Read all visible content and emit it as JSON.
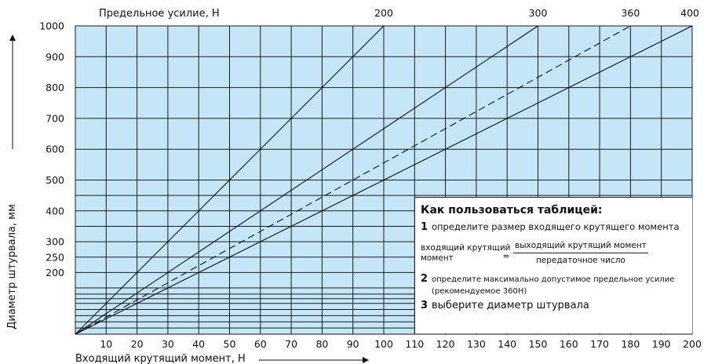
{
  "chart_data": {
    "type": "line",
    "xlabel": "Входящий крутящий момент, Н",
    "ylabel": "Диаметр штурвала, мм",
    "top_label": "Предельное усилие, Н",
    "x_ticks": [
      "10",
      "20",
      "30",
      "40",
      "50",
      "60",
      "70",
      "80",
      "90",
      "100",
      "110",
      "120",
      "130",
      "140",
      "150",
      "160",
      "170",
      "180",
      "190",
      "200"
    ],
    "y_ticks": [
      "200",
      "250",
      "300",
      "400",
      "500",
      "600",
      "700",
      "800",
      "900",
      "1000"
    ],
    "x_range": [
      0,
      200
    ],
    "y_range": [
      0,
      1000
    ],
    "grid": true,
    "series": [
      {
        "label": "200",
        "style": "solid",
        "x": [
          0,
          100
        ],
        "y": [
          0,
          1000
        ]
      },
      {
        "label": "300",
        "style": "solid",
        "x": [
          0,
          150
        ],
        "y": [
          0,
          1000
        ]
      },
      {
        "label": "360",
        "style": "dashed",
        "x": [
          0,
          180
        ],
        "y": [
          0,
          1000
        ]
      },
      {
        "label": "400",
        "style": "solid",
        "x": [
          0,
          200
        ],
        "y": [
          0,
          1000
        ]
      }
    ]
  },
  "instructions": {
    "title": "Как пользоваться таблицей:",
    "step1_num": "1",
    "step1": "определите размер входящего крутящего момента",
    "formula_lhs_line1": "входящий крутящий",
    "formula_lhs_line2": "момент",
    "formula_eq": "=",
    "formula_num": "выходящий крутящий момент",
    "formula_den": "передаточное число",
    "step2_num": "2",
    "step2_line1": "определите максимально допустимое предельное усилие",
    "step2_line2": "(рекомендуемое 360Н)",
    "step3_num": "3",
    "step3": "выберите диаметр штурвала"
  },
  "colors": {
    "plot_background": "#c4e6f7",
    "grid": "#1a1a1a",
    "lines": "#111111"
  }
}
